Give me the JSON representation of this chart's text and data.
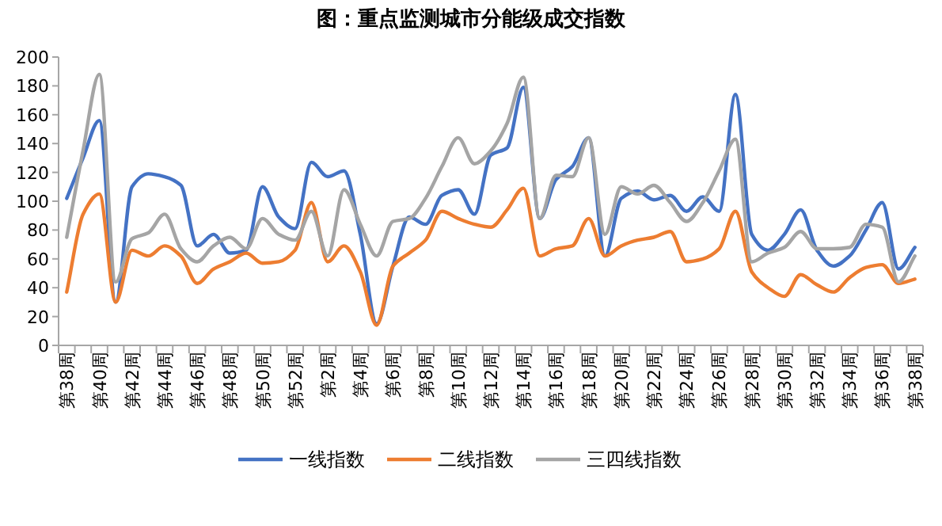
{
  "chart_data": {
    "type": "line",
    "title": "图：重点监测城市分能级成交指数",
    "categories": [
      "第38周",
      null,
      "第40周",
      null,
      "第42周",
      null,
      "第44周",
      null,
      "第46周",
      null,
      "第48周",
      null,
      "第50周",
      null,
      "第52周",
      null,
      "第2周",
      null,
      "第4周",
      null,
      "第6周",
      null,
      "第8周",
      null,
      "第10周",
      null,
      "第12周",
      null,
      "第14周",
      null,
      "第16周",
      null,
      "第18周",
      null,
      "第20周",
      null,
      "第22周",
      null,
      "第24周",
      null,
      "第26周",
      null,
      "第28周",
      null,
      "第30周",
      null,
      "第32周",
      null,
      "第34周",
      null,
      "第36周",
      null,
      "第38周"
    ],
    "series": [
      {
        "name": "一线指数",
        "color": "#4472c4",
        "values": [
          102,
          130,
          156,
          30,
          110,
          119,
          117,
          111,
          69,
          77,
          64,
          66,
          110,
          89,
          81,
          127,
          117,
          121,
          77,
          15,
          55,
          89,
          84,
          104,
          108,
          91,
          132,
          137,
          179,
          88,
          115,
          124,
          144,
          62,
          102,
          107,
          101,
          104,
          93,
          103,
          93,
          174,
          77,
          66,
          77,
          94,
          66,
          55,
          62,
          80,
          99,
          53,
          68
        ]
      },
      {
        "name": "二线指数",
        "color": "#ed7d31",
        "values": [
          37,
          91,
          105,
          30,
          66,
          62,
          69,
          62,
          43,
          53,
          58,
          64,
          57,
          58,
          66,
          99,
          58,
          69,
          51,
          14,
          55,
          64,
          73,
          93,
          88,
          84,
          82,
          94,
          109,
          62,
          67,
          69,
          88,
          62,
          69,
          73,
          75,
          79,
          58,
          60,
          67,
          93,
          51,
          40,
          34,
          49,
          42,
          37,
          47,
          54,
          56,
          43,
          46
        ]
      },
      {
        "name": "三四线指数",
        "color": "#a5a5a5",
        "values": [
          75,
          135,
          188,
          44,
          74,
          78,
          91,
          67,
          58,
          69,
          75,
          67,
          88,
          77,
          73,
          93,
          62,
          108,
          84,
          62,
          86,
          88,
          102,
          124,
          144,
          126,
          135,
          154,
          186,
          88,
          118,
          117,
          144,
          77,
          110,
          105,
          111,
          99,
          86,
          99,
          121,
          143,
          58,
          64,
          68,
          79,
          67,
          67,
          68,
          84,
          82,
          44,
          62
        ]
      }
    ],
    "ylim": [
      0,
      200
    ],
    "yticks": [
      0,
      20,
      40,
      60,
      80,
      100,
      120,
      140,
      160,
      180,
      200
    ],
    "grid": false,
    "legend": "bottom"
  }
}
